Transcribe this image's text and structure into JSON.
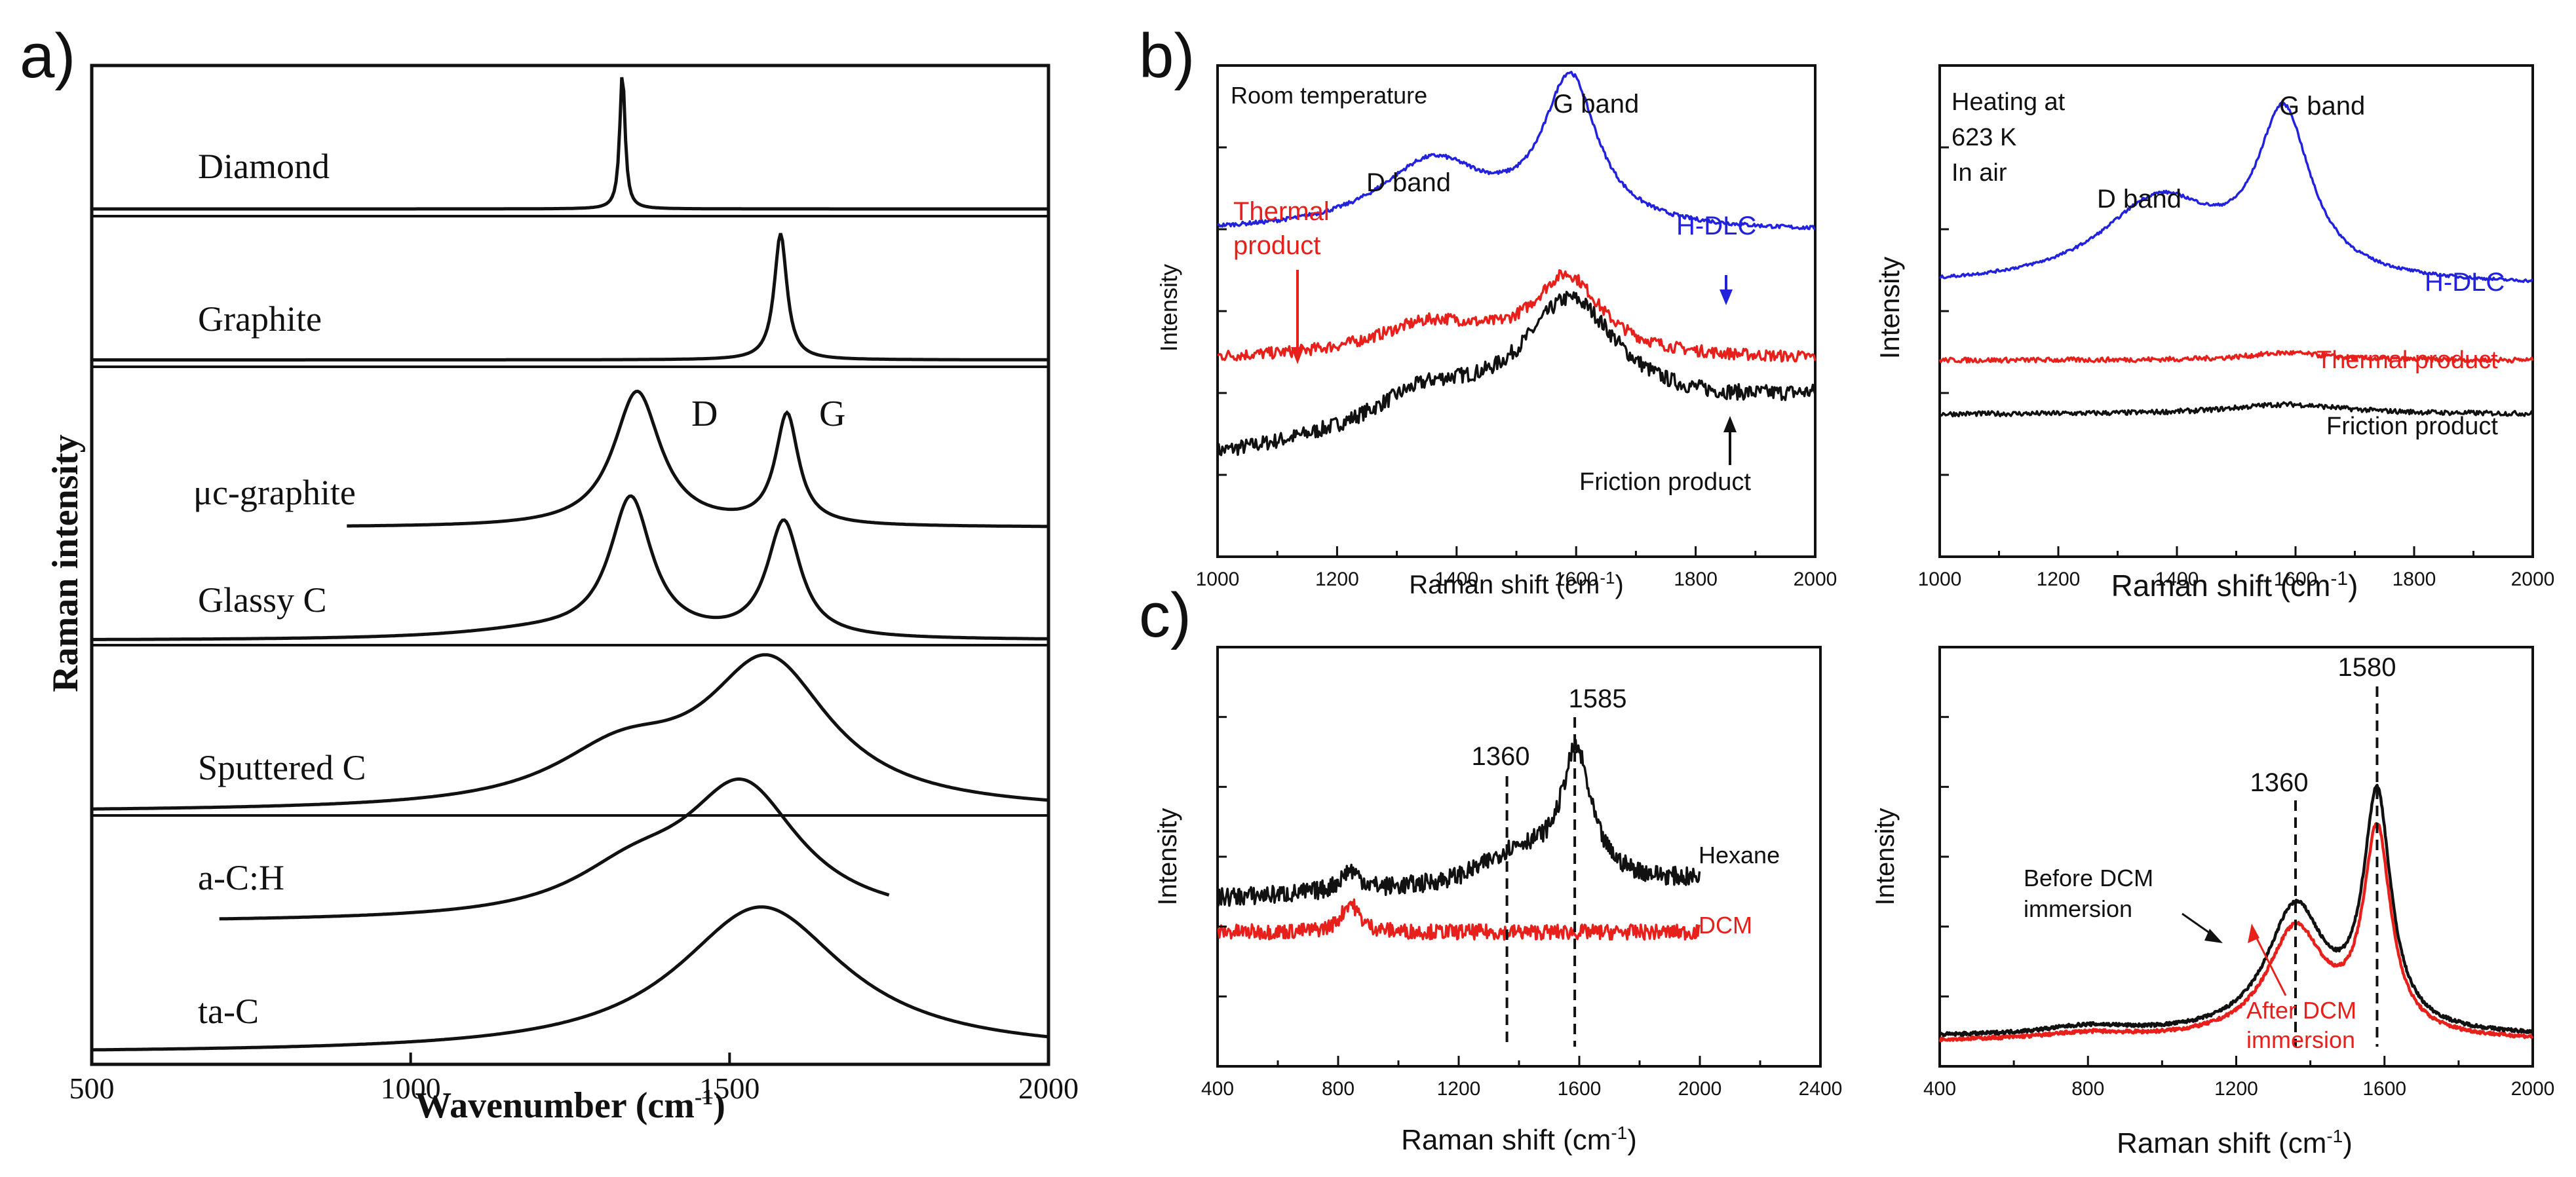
{
  "panel_labels": {
    "a": "a)",
    "b": "b)",
    "c": "c)"
  },
  "colors": {
    "black": "#111111",
    "red": "#e8201c",
    "blue": "#2222dd"
  },
  "chart_data": [
    {
      "id": "a",
      "type": "line",
      "xlabel": "Wavenumber (cm-1)",
      "xlabel_parts": {
        "main": "Wavenumber (cm",
        "sup": "-1",
        "close": ")"
      },
      "ylabel": "Raman intensity",
      "xlim": [
        500,
        2000
      ],
      "xticks": [
        500,
        1000,
        1500,
        2000
      ],
      "peak_labels": [
        {
          "text": "D",
          "x": 1420
        },
        {
          "text": "G",
          "x": 1650
        }
      ],
      "series": [
        {
          "name": "Diamond",
          "xrange": [
            500,
            2000
          ],
          "baseline": 0.05,
          "components": [
            {
              "c": 1332,
              "w": 5,
              "h": 0.95
            }
          ]
        },
        {
          "name": "Graphite",
          "xrange": [
            500,
            2000
          ],
          "baseline": 0.05,
          "components": [
            {
              "c": 1580,
              "w": 12,
              "h": 0.92
            }
          ]
        },
        {
          "name": "μc-graphite",
          "xrange": [
            900,
            2000
          ],
          "baseline": 0.02,
          "components": [
            {
              "c": 1355,
              "w": 45,
              "h": 0.86
            },
            {
              "c": 1590,
              "w": 22,
              "h": 0.7
            }
          ]
        },
        {
          "name": "Glassy C",
          "xrange": [
            500,
            2000
          ],
          "baseline": 0.03,
          "components": [
            {
              "c": 1345,
              "w": 40,
              "h": 0.86
            },
            {
              "c": 1585,
              "w": 32,
              "h": 0.72
            },
            {
              "c": 1200,
              "w": 160,
              "h": 0.05
            }
          ]
        },
        {
          "name": "Sputtered C",
          "xrange": [
            500,
            2000
          ],
          "baseline": 0.02,
          "components": [
            {
              "c": 1560,
              "w": 120,
              "h": 0.85
            },
            {
              "c": 1330,
              "w": 130,
              "h": 0.3
            }
          ]
        },
        {
          "name": "a-C:H",
          "xrange": [
            700,
            1750
          ],
          "baseline": 0.03,
          "components": [
            {
              "c": 1520,
              "w": 110,
              "h": 0.9
            },
            {
              "c": 1350,
              "w": 120,
              "h": 0.28
            }
          ]
        },
        {
          "name": "ta-C",
          "xrange": [
            500,
            2000
          ],
          "baseline": 0.03,
          "components": [
            {
              "c": 1550,
              "w": 160,
              "h": 0.95
            }
          ]
        }
      ]
    },
    {
      "id": "b1",
      "type": "line",
      "xlabel": "Raman shift (cm-1)",
      "xlabel_parts": {
        "main": "Raman shift (cm",
        "sup": "-1",
        "close": ")"
      },
      "ylabel": "Intensity",
      "xlim": [
        1000,
        2000
      ],
      "xticks": [
        1000,
        1200,
        1400,
        1600,
        1800,
        2000
      ],
      "annotations": [
        "Room temperature",
        "G band",
        "D band",
        "Thermal",
        "product",
        "H-DLC",
        "Friction product"
      ],
      "series": [
        {
          "name": "H-DLC",
          "color": "blue",
          "offset": 0.66,
          "noise": 0.004,
          "components": [
            {
              "c": 1590,
              "w": 55,
              "h": 0.3
            },
            {
              "c": 1360,
              "w": 110,
              "h": 0.14
            }
          ]
        },
        {
          "name": "Thermal product",
          "color": "red",
          "offset": 0.4,
          "noise": 0.012,
          "components": [
            {
              "c": 1585,
              "w": 70,
              "h": 0.16
            },
            {
              "c": 1360,
              "w": 120,
              "h": 0.07
            }
          ]
        },
        {
          "name": "Friction product",
          "color": "black",
          "offset": 0.2,
          "noise": 0.016,
          "trend": 0.12,
          "components": [
            {
              "c": 1590,
              "w": 100,
              "h": 0.24
            },
            {
              "c": 1350,
              "w": 120,
              "h": 0.08
            }
          ]
        }
      ]
    },
    {
      "id": "b2",
      "type": "line",
      "xlabel": "Raman shift (cm-1)",
      "xlabel_parts": {
        "main": "Raman shift (cm",
        "sup": "-1",
        "close": ")"
      },
      "ylabel": "Intensity",
      "xlim": [
        1000,
        2000
      ],
      "xticks": [
        1000,
        1200,
        1400,
        1600,
        1800,
        2000
      ],
      "xtick_labels": [
        "1000",
        "1200",
        "1400",
        "1600",
        "1800",
        "2000"
      ],
      "annotations": [
        "Heating at",
        "623 K",
        "In air",
        "G band",
        "D band",
        "H-DLC",
        "Thermal product",
        "Friction product"
      ],
      "series": [
        {
          "name": "H-DLC",
          "color": "blue",
          "offset": 0.55,
          "noise": 0.003,
          "components": [
            {
              "c": 1580,
              "w": 55,
              "h": 0.33
            },
            {
              "c": 1370,
              "w": 120,
              "h": 0.17
            }
          ]
        },
        {
          "name": "Thermal product",
          "color": "red",
          "offset": 0.4,
          "noise": 0.005,
          "components": [
            {
              "c": 1585,
              "w": 80,
              "h": 0.015
            }
          ]
        },
        {
          "name": "Friction product",
          "color": "black",
          "offset": 0.29,
          "noise": 0.005,
          "components": [
            {
              "c": 1585,
              "w": 120,
              "h": 0.02
            }
          ]
        }
      ]
    },
    {
      "id": "c1",
      "type": "line",
      "xlabel": "Raman shift (cm-1)",
      "xlabel_parts": {
        "main": "Raman shift (cm",
        "sup": "-1",
        "close": ")"
      },
      "ylabel": "Intensity",
      "xlim": [
        400,
        2400
      ],
      "xticks": [
        400,
        800,
        1200,
        1600,
        2000,
        2400
      ],
      "data_xrange": [
        400,
        2000
      ],
      "markers": [
        1360,
        1585
      ],
      "annotations": [
        "1585",
        "1360",
        "Hexane",
        "DCM"
      ],
      "series": [
        {
          "name": "Hexane",
          "color": "black",
          "offset": 0.4,
          "noise": 0.022,
          "trend": 0.04,
          "components": [
            {
              "c": 1590,
              "w": 60,
              "h": 0.3
            },
            {
              "c": 840,
              "w": 40,
              "h": 0.05
            },
            {
              "c": 1400,
              "w": 150,
              "h": 0.08
            }
          ]
        },
        {
          "name": "DCM",
          "color": "red",
          "offset": 0.32,
          "noise": 0.018,
          "components": [
            {
              "c": 840,
              "w": 35,
              "h": 0.07
            }
          ]
        }
      ]
    },
    {
      "id": "c2",
      "type": "line",
      "xlabel": "Raman shift (cm-1)",
      "xlabel_parts": {
        "main": "Raman shift (cm",
        "sup": "-1",
        "close": ")"
      },
      "ylabel": "Intensity",
      "xlim": [
        400,
        2000
      ],
      "xticks": [
        400,
        800,
        1200,
        1600,
        2000
      ],
      "markers": [
        1360,
        1580
      ],
      "annotations": [
        "1580",
        "1360",
        "Before DCM",
        "immersion",
        "After DCM",
        "immersion"
      ],
      "series": [
        {
          "name": "Before DCM immersion",
          "color": "black",
          "offset": 0.07,
          "noise": 0.004,
          "components": [
            {
              "c": 1580,
              "w": 45,
              "h": 0.55
            },
            {
              "c": 1360,
              "w": 95,
              "h": 0.3
            },
            {
              "c": 800,
              "w": 150,
              "h": 0.02
            }
          ]
        },
        {
          "name": "After DCM immersion",
          "color": "red",
          "offset": 0.06,
          "noise": 0.004,
          "components": [
            {
              "c": 1580,
              "w": 45,
              "h": 0.48
            },
            {
              "c": 1360,
              "w": 95,
              "h": 0.26
            },
            {
              "c": 800,
              "w": 150,
              "h": 0.015
            }
          ]
        }
      ]
    }
  ]
}
